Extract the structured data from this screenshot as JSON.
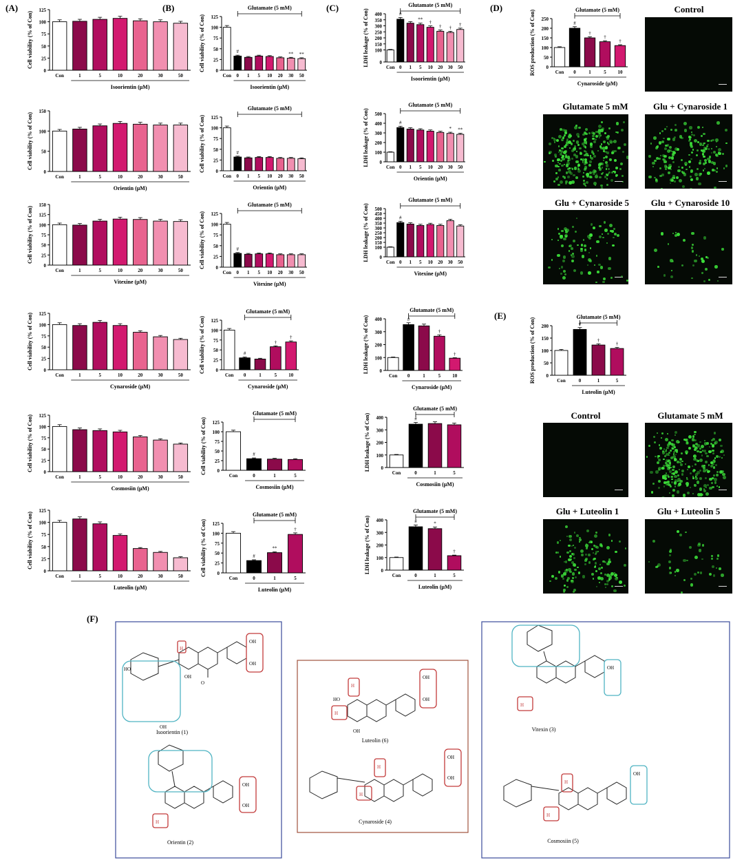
{
  "colors": {
    "con": "#ffffff",
    "zero": "#000000",
    "c1": "#8b0a4a",
    "c5": "#b00d5e",
    "c10": "#d2196f",
    "c20": "#e8638f",
    "c30": "#f18fb0",
    "c50": "#f6bbd0"
  },
  "panel_labels": {
    "A": "(A)",
    "B": "(B)",
    "C": "(C)",
    "D": "(D)",
    "E": "(E)",
    "F": "(F)"
  },
  "chart_data": [
    {
      "id": "A1",
      "panel": "A",
      "type": "bar",
      "categories": [
        "Con",
        "1",
        "5",
        "10",
        "20",
        "30",
        "50"
      ],
      "values": [
        100,
        101,
        105,
        107,
        102,
        100,
        97
      ],
      "ylabel": "Cell viability (% of Con)",
      "xlabel": "Isoorientin (μM)",
      "ylim": [
        0,
        125
      ],
      "yticks": [
        0,
        25,
        50,
        75,
        100,
        125
      ]
    },
    {
      "id": "A2",
      "panel": "A",
      "type": "bar",
      "categories": [
        "Con",
        "1",
        "5",
        "10",
        "20",
        "30",
        "50"
      ],
      "values": [
        100,
        105,
        113,
        119,
        117,
        115,
        115
      ],
      "ylabel": "Cell viability (% of Con)",
      "xlabel": "Orientin (μM)",
      "ylim": [
        0,
        150
      ],
      "yticks": [
        0,
        50,
        100,
        150
      ]
    },
    {
      "id": "A3",
      "panel": "A",
      "type": "bar",
      "categories": [
        "Con",
        "1",
        "5",
        "10",
        "20",
        "30",
        "50"
      ],
      "values": [
        100,
        99,
        109,
        114,
        113,
        109,
        108
      ],
      "ylabel": "Cell viability (% of Con)",
      "xlabel": "Vitexine (μM)",
      "ylim": [
        0,
        150
      ],
      "yticks": [
        0,
        25,
        50,
        75,
        100,
        125,
        150
      ]
    },
    {
      "id": "A4",
      "panel": "A",
      "type": "bar",
      "categories": [
        "Con",
        "1",
        "5",
        "10",
        "20",
        "30",
        "50"
      ],
      "values": [
        100,
        98,
        105,
        98,
        83,
        73,
        67
      ],
      "ylabel": "Cell viability (% of Con)",
      "xlabel": "Cynaroside (μM)",
      "ylim": [
        0,
        125
      ],
      "yticks": [
        0,
        25,
        50,
        75,
        100,
        125
      ]
    },
    {
      "id": "A5",
      "panel": "A",
      "type": "bar",
      "categories": [
        "Con",
        "1",
        "5",
        "10",
        "20",
        "30",
        "50"
      ],
      "values": [
        100,
        93,
        91,
        88,
        77,
        70,
        61
      ],
      "ylabel": "Cell viability (% of Con)",
      "xlabel": "Cosmosiin (μM)",
      "ylim": [
        0,
        125
      ],
      "yticks": [
        0,
        25,
        50,
        75,
        100,
        125
      ]
    },
    {
      "id": "A6",
      "panel": "A",
      "type": "bar",
      "categories": [
        "Con",
        "1",
        "5",
        "10",
        "20",
        "30",
        "50"
      ],
      "values": [
        100,
        107,
        97,
        73,
        46,
        38,
        27
      ],
      "ylabel": "Cell viability (% of Con)",
      "xlabel": "Luteolin (μM)",
      "ylim": [
        0,
        125
      ],
      "yticks": [
        0,
        25,
        50,
        75,
        100,
        125
      ]
    },
    {
      "id": "B1",
      "panel": "B",
      "type": "bar",
      "categories": [
        "Con",
        "0",
        "1",
        "5",
        "10",
        "20",
        "30",
        "50"
      ],
      "values": [
        100,
        33,
        30,
        33,
        32,
        29,
        28,
        27
      ],
      "marks": [
        "",
        "#",
        "",
        "",
        "",
        "",
        "**",
        "**"
      ],
      "bracket": "Glutamate (5 mM)",
      "ylabel": "Cell viability (% of Con)",
      "xlabel": "Isoorientin (μM)",
      "ylim": [
        0,
        125
      ],
      "yticks": [
        0,
        25,
        50,
        75,
        100,
        125
      ]
    },
    {
      "id": "B2",
      "panel": "B",
      "type": "bar",
      "categories": [
        "Con",
        "0",
        "1",
        "5",
        "10",
        "20",
        "30",
        "50"
      ],
      "values": [
        100,
        32,
        30,
        31,
        31,
        29,
        29,
        28
      ],
      "marks": [
        "",
        "#",
        "",
        "",
        "",
        "",
        "",
        ""
      ],
      "bracket": "Glutamate (5 mM)",
      "ylabel": "Cell viability (% of Con)",
      "xlabel": "Orientin (μM)",
      "ylim": [
        0,
        125
      ],
      "yticks": [
        0,
        25,
        50,
        75,
        100,
        125
      ]
    },
    {
      "id": "B3",
      "panel": "B",
      "type": "bar",
      "categories": [
        "Con",
        "0",
        "1",
        "5",
        "10",
        "20",
        "30",
        "50"
      ],
      "values": [
        100,
        32,
        30,
        31,
        31,
        29,
        29,
        29
      ],
      "marks": [
        "",
        "#",
        "",
        "",
        "",
        "",
        "",
        ""
      ],
      "bracket": "Glutamate (5 mM)",
      "ylabel": "Cell viability (% of Con)",
      "xlabel": "Vitexine (μM)",
      "ylim": [
        0,
        125
      ],
      "yticks": [
        0,
        25,
        50,
        75,
        100,
        125
      ]
    },
    {
      "id": "B4",
      "panel": "B",
      "type": "bar",
      "categories": [
        "Con",
        "0",
        "1",
        "5",
        "10"
      ],
      "values": [
        100,
        30,
        27,
        58,
        70
      ],
      "marks": [
        "",
        "#",
        "",
        "†",
        "†"
      ],
      "bracket": "Glutamate (5 mM)",
      "ylabel": "Cell viability (% of Con)",
      "xlabel": "Cynaroside (μM)",
      "ylim": [
        0,
        125
      ],
      "yticks": [
        0,
        25,
        50,
        75,
        100,
        125
      ]
    },
    {
      "id": "B5",
      "panel": "B",
      "type": "bar",
      "categories": [
        "Con",
        "0",
        "1",
        "5"
      ],
      "values": [
        100,
        30,
        29,
        28
      ],
      "marks": [
        "",
        "#",
        "",
        ""
      ],
      "bracket": "Glutamate (5 mM)",
      "ylabel": "Cell viability (% of Con)",
      "xlabel": "Cosmosiin (μM)",
      "ylim": [
        0,
        125
      ],
      "yticks": [
        0,
        25,
        50,
        75,
        100,
        125
      ]
    },
    {
      "id": "B6",
      "panel": "B",
      "type": "bar",
      "categories": [
        "Con",
        "0",
        "1",
        "5"
      ],
      "values": [
        100,
        31,
        51,
        97
      ],
      "marks": [
        "",
        "#",
        "**",
        "†"
      ],
      "bracket": "Glutamate (5 mM)",
      "ylabel": "Cell viability (% of Con)",
      "xlabel": "Luteolin (μM)",
      "ylim": [
        0,
        125
      ],
      "yticks": [
        0,
        25,
        50,
        75,
        100,
        125
      ]
    },
    {
      "id": "C1",
      "panel": "C",
      "type": "bar",
      "categories": [
        "Con",
        "0",
        "1",
        "5",
        "10",
        "20",
        "30",
        "50"
      ],
      "values": [
        100,
        355,
        322,
        310,
        288,
        255,
        245,
        270
      ],
      "marks": [
        "",
        "#",
        "",
        "**",
        "†",
        "†",
        "†",
        "†"
      ],
      "bracket": "Glutamate (5 mM)",
      "ylabel": "LDH leakage (% of Con)",
      "xlabel": "Isoorientin (μM)",
      "ylim": [
        0,
        400
      ],
      "yticks": [
        0,
        100,
        150,
        200,
        250,
        300,
        350,
        400
      ]
    },
    {
      "id": "C2",
      "panel": "C",
      "type": "bar",
      "categories": [
        "Con",
        "0",
        "1",
        "5",
        "10",
        "20",
        "30",
        "50"
      ],
      "values": [
        100,
        355,
        340,
        330,
        318,
        305,
        295,
        285
      ],
      "marks": [
        "",
        "#",
        "",
        "",
        "",
        "",
        "*",
        "**"
      ],
      "bracket": "Glutamate (5 mM)",
      "ylabel": "LDH leakage (% of Con)",
      "xlabel": "Orientin (μM)",
      "ylim": [
        0,
        500
      ],
      "yticks": [
        0,
        100,
        200,
        300,
        400,
        500
      ]
    },
    {
      "id": "C3",
      "panel": "C",
      "type": "bar",
      "categories": [
        "Con",
        "0",
        "1",
        "5",
        "10",
        "20",
        "30",
        "50"
      ],
      "values": [
        100,
        355,
        340,
        325,
        335,
        325,
        375,
        320
      ],
      "marks": [
        "",
        "#",
        "",
        "",
        "",
        "",
        "",
        ""
      ],
      "bracket": "Glutamate (5 mM)",
      "ylabel": "LDH leakage (% of Con)",
      "xlabel": "Vitexine (μM)",
      "ylim": [
        0,
        500
      ],
      "yticks": [
        0,
        100,
        150,
        200,
        250,
        300,
        350,
        400,
        450,
        500
      ]
    },
    {
      "id": "C4",
      "panel": "C",
      "type": "bar",
      "categories": [
        "Con",
        "0",
        "1",
        "5",
        "10"
      ],
      "values": [
        100,
        355,
        345,
        265,
        95
      ],
      "marks": [
        "",
        "#",
        "",
        "†",
        "†"
      ],
      "bracket": "Glutamate (5 mM)",
      "ylabel": "LDH leakage (% of Con)",
      "xlabel": "Cynaroside (μM)",
      "ylim": [
        0,
        400
      ],
      "yticks": [
        0,
        100,
        200,
        300,
        400
      ]
    },
    {
      "id": "C5",
      "panel": "C",
      "type": "bar",
      "categories": [
        "Con",
        "0",
        "1",
        "5"
      ],
      "values": [
        100,
        345,
        350,
        340
      ],
      "marks": [
        "",
        "#",
        "",
        ""
      ],
      "bracket": "Glutamate (5 mM)",
      "ylabel": "LDH leakage (% of Con)",
      "xlabel": "Cosmosiin (μM)",
      "ylim": [
        0,
        400
      ],
      "yticks": [
        0,
        100,
        200,
        300,
        400
      ]
    },
    {
      "id": "C6",
      "panel": "C",
      "type": "bar",
      "categories": [
        "Con",
        "0",
        "1",
        "5"
      ],
      "values": [
        100,
        345,
        330,
        115
      ],
      "marks": [
        "",
        "#",
        "*",
        "†"
      ],
      "bracket": "Glutamate (5 mM)",
      "ylabel": "LDH leakage (% of Con)",
      "xlabel": "Luteolin (μM)",
      "ylim": [
        0,
        400
      ],
      "yticks": [
        0,
        100,
        200,
        300,
        400
      ]
    },
    {
      "id": "D",
      "panel": "D",
      "type": "bar",
      "categories": [
        "Con",
        "0",
        "1",
        "5",
        "10"
      ],
      "values": [
        100,
        200,
        150,
        130,
        110
      ],
      "marks": [
        "",
        "#",
        "†",
        "†",
        "†"
      ],
      "bracket": "Glutamate (5 mM)",
      "ylabel": "ROS production (% of Con)",
      "xlabel": "Cynaroside (μM)",
      "ylim": [
        0,
        250
      ],
      "yticks": [
        0,
        50,
        100,
        150,
        200,
        250
      ]
    },
    {
      "id": "E",
      "panel": "E",
      "type": "bar",
      "categories": [
        "Con",
        "0",
        "1",
        "5"
      ],
      "values": [
        100,
        185,
        122,
        108
      ],
      "marks": [
        "",
        "#",
        "†",
        "†"
      ],
      "bracket": "Glutamate (5 mM)",
      "ylabel": "ROS production (% of Con)",
      "xlabel": "Luteolin (μM)",
      "ylim": [
        0,
        200
      ],
      "yticks": [
        0,
        50,
        100,
        150,
        200
      ]
    }
  ],
  "micrographs": [
    {
      "id": "m1",
      "title": "Control",
      "intensity": 0
    },
    {
      "id": "m2",
      "title": "Glutamate 5 mM",
      "intensity": 3
    },
    {
      "id": "m3",
      "title": "Glu + Cynaroside 1",
      "intensity": 2
    },
    {
      "id": "m4",
      "title": "Glu + Cynaroside 5",
      "intensity": 1
    },
    {
      "id": "m5",
      "title": "Glu + Cynaroside 10",
      "intensity": 0.4
    },
    {
      "id": "m6",
      "title": "Control",
      "intensity": 0
    },
    {
      "id": "m7",
      "title": "Glutamate 5 mM",
      "intensity": 3
    },
    {
      "id": "m8",
      "title": "Glu + Luteolin 1",
      "intensity": 1.5
    },
    {
      "id": "m9",
      "title": "Glu + Luteolin 5",
      "intensity": 0.5
    }
  ],
  "structures": {
    "isoorientin": "Isoorientin (1)",
    "orientin": "Orientin (2)",
    "luteolin": "Luteolin (6)",
    "cynaroside": "Cynaroside (4)",
    "vitexin": "Vitexin (3)",
    "cosmosiin": "Cosmosiin (5)",
    "atoms": {
      "oh": "OH",
      "ho": "HO",
      "h": "H",
      "o": "O"
    }
  }
}
